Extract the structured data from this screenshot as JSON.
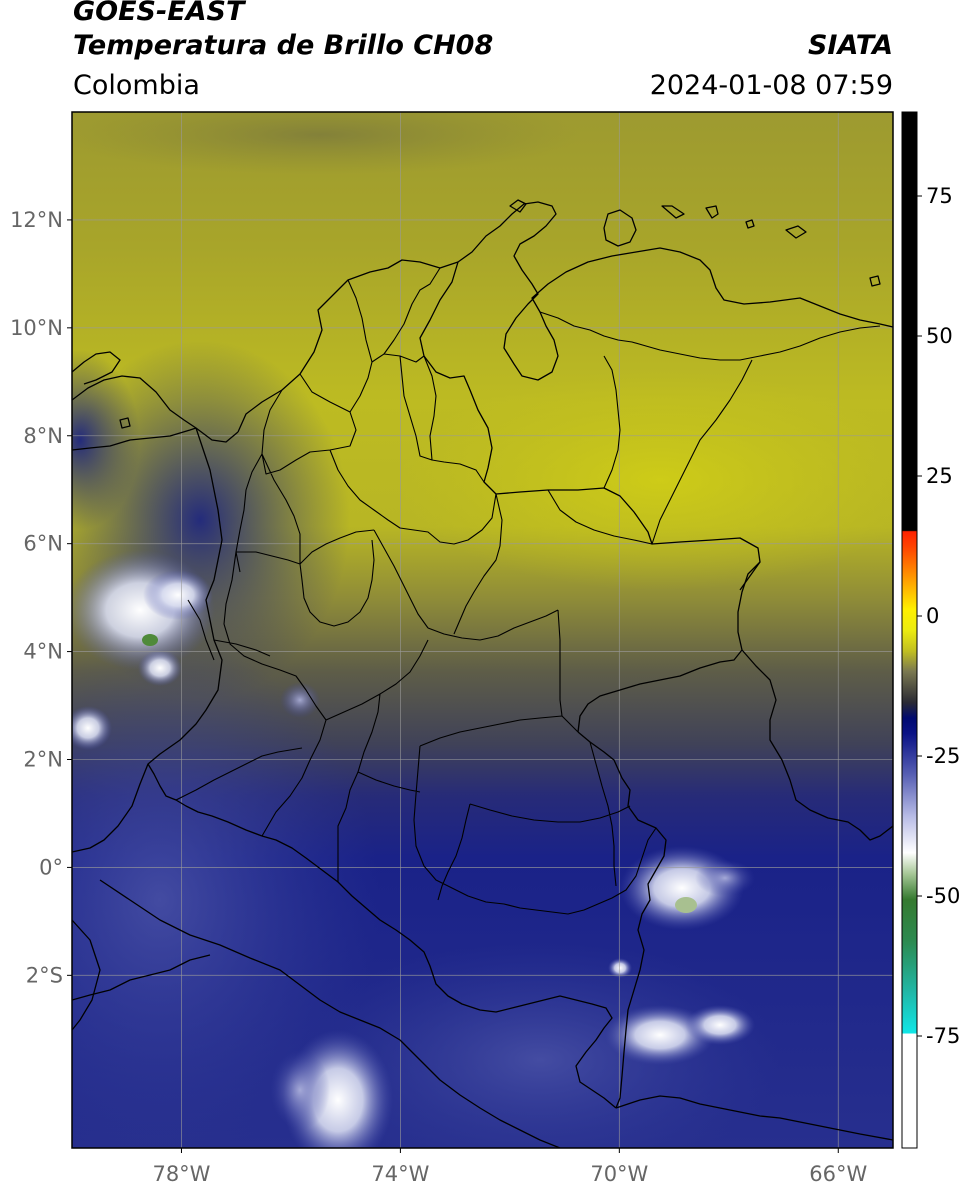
{
  "header": {
    "satellite": "GOES-EAST",
    "product": "Temperatura de Brillo CH08",
    "organization": "SIATA",
    "region": "Colombia",
    "datetime": "2024-01-08 07:59"
  },
  "map": {
    "extent": {
      "lon_min": -80,
      "lon_max": -65,
      "lat_min": -5.2,
      "lat_max": 14
    },
    "lat_ticks": [
      {
        "value": 12,
        "label": "12°N"
      },
      {
        "value": 10,
        "label": "10°N"
      },
      {
        "value": 8,
        "label": "8°N"
      },
      {
        "value": 6,
        "label": "6°N"
      },
      {
        "value": 4,
        "label": "4°N"
      },
      {
        "value": 2,
        "label": "2°N"
      },
      {
        "value": 0,
        "label": "0°"
      },
      {
        "value": -2,
        "label": "2°S"
      }
    ],
    "lon_ticks": [
      {
        "value": -78,
        "label": "78°W"
      },
      {
        "value": -74,
        "label": "74°W"
      },
      {
        "value": -70,
        "label": "70°W"
      },
      {
        "value": -66,
        "label": "66°W"
      }
    ]
  },
  "colorbar": {
    "range": [
      -95,
      90
    ],
    "ticks": [
      {
        "value": 75,
        "label": "75"
      },
      {
        "value": 50,
        "label": "50"
      },
      {
        "value": 25,
        "label": "25"
      },
      {
        "value": 0,
        "label": "0"
      },
      {
        "value": -25,
        "label": "-25"
      },
      {
        "value": -50,
        "label": "-50"
      },
      {
        "value": -75,
        "label": "-75"
      }
    ]
  },
  "colors": {
    "warm_cloud_free": "#c6c41a",
    "mid": "#5a5a48",
    "cold_blue": "#1c2285",
    "very_cold": "#ffffff",
    "border_line": "#000000",
    "grid_line": "#9a9a9a"
  }
}
